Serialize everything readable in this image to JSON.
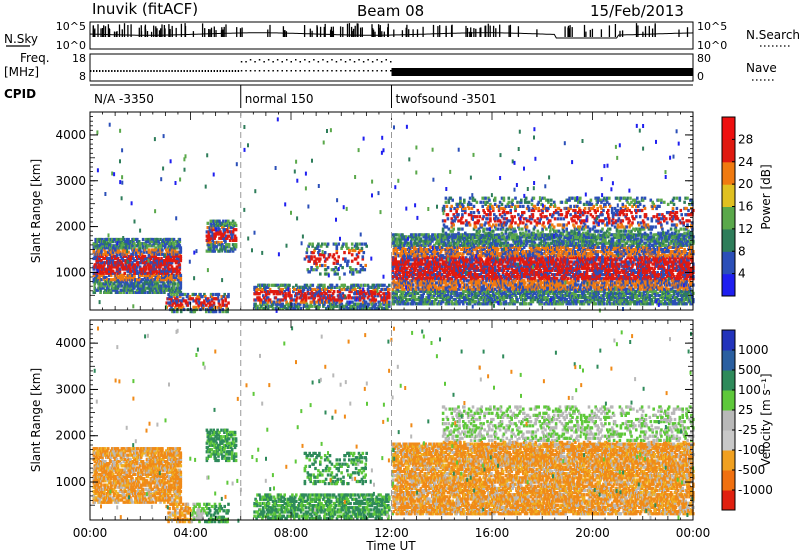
{
  "header": {
    "station": "Inuvik (fitACF)",
    "beam": "Beam 08",
    "date": "15/Feb/2013"
  },
  "summary": {
    "nsky_label": "N.Sky",
    "nsearch_label": "N.Search",
    "freq_label": "Freq.",
    "freq_unit": "[MHz]",
    "nave_label": "Nave",
    "cpid_label": "CPID",
    "nsky_ticks": [
      "10^5",
      "10^0"
    ],
    "nsearch_ticks": [
      "10^5",
      "10^0"
    ],
    "freq_ticks": [
      "18",
      "8"
    ],
    "nave_ticks": [
      "80",
      "0"
    ],
    "cpid_segments": [
      {
        "label": "N/A -3350",
        "start": 0,
        "end": 6
      },
      {
        "label": "normal 150",
        "start": 6,
        "end": 12
      },
      {
        "label": "twofsound -3501",
        "start": 12,
        "end": 24
      }
    ]
  },
  "chart_data": [
    {
      "type": "heatmap",
      "panel": "power",
      "ylabel": "Slant Range [km]",
      "xlabel": "Time UT",
      "xlim": [
        0,
        24
      ],
      "ylim": [
        180,
        4500
      ],
      "xticks": [
        "00:00",
        "04:00",
        "08:00",
        "12:00",
        "16:00",
        "20:00",
        "00:00"
      ],
      "yticks": [
        1000,
        2000,
        3000,
        4000
      ],
      "colorbar": {
        "label": "Power [dB]",
        "ticks": [
          4,
          8,
          12,
          16,
          20,
          24,
          28
        ],
        "colors": [
          "#1f1ff0",
          "#2b4fb8",
          "#2e7d5a",
          "#5aa84a",
          "#e0c020",
          "#f07a10",
          "#e01a10",
          "#ee1010"
        ]
      },
      "mode_changes": [
        6,
        12
      ]
    },
    {
      "type": "heatmap",
      "panel": "velocity",
      "ylabel": "Slant Range [km]",
      "xlabel": "Time UT",
      "xlim": [
        0,
        24
      ],
      "ylim": [
        180,
        4500
      ],
      "xticks": [
        "00:00",
        "04:00",
        "08:00",
        "12:00",
        "16:00",
        "20:00",
        "00:00"
      ],
      "yticks": [
        1000,
        2000,
        3000,
        4000
      ],
      "colorbar": {
        "label": "Velocity [m s⁻¹]",
        "ticks": [
          "1000",
          "500",
          "100",
          "25",
          "-25",
          "-100",
          "-500",
          "-1000"
        ],
        "colors": [
          "#2233bb",
          "#2a5fa0",
          "#2e8a5a",
          "#5ec83a",
          "#b8b8b8",
          "#c8c8c8",
          "#f0a020",
          "#f07010",
          "#e02010"
        ]
      },
      "mode_changes": [
        6,
        12
      ]
    }
  ]
}
